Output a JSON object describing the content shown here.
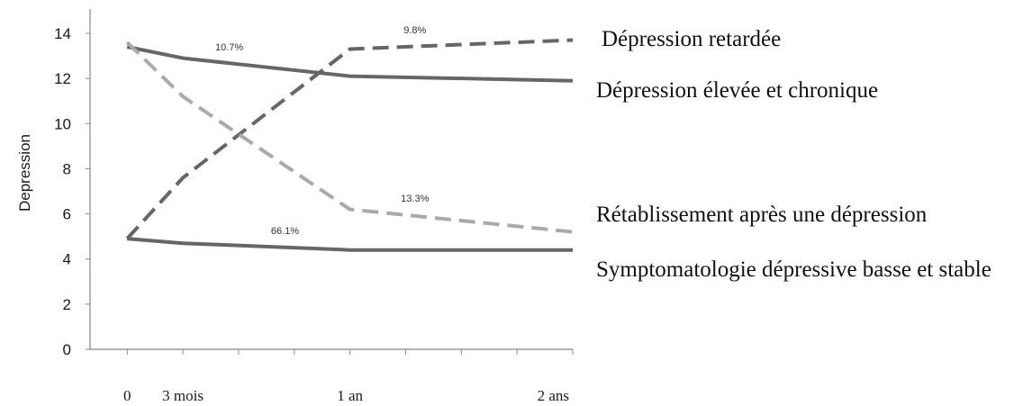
{
  "chart_data": {
    "type": "line",
    "x": [
      0,
      3,
      12,
      24
    ],
    "x_tick_labels": [
      {
        "x": 0,
        "label": "0"
      },
      {
        "x": 3,
        "label": "3 mois"
      },
      {
        "x": 12,
        "label": "1 an"
      },
      {
        "x": 24,
        "label": "2 ans"
      }
    ],
    "xlim": [
      -2,
      24
    ],
    "ylabel": "Depression",
    "ylim": [
      0,
      14
    ],
    "y_ticks": [
      0,
      2,
      4,
      6,
      8,
      10,
      12,
      14
    ],
    "grid": false,
    "series": [
      {
        "name": "Dépression retardée",
        "percent": "9.8%",
        "style": "dashed",
        "color": "#666666",
        "values": [
          4.9,
          7.6,
          13.3,
          13.7
        ]
      },
      {
        "name": "Dépression élevée et chronique",
        "percent": "10.7%",
        "style": "solid",
        "color": "#666666",
        "values": [
          13.4,
          12.9,
          12.1,
          11.9
        ]
      },
      {
        "name": "Rétablissement après une dépression",
        "percent": "13.3%",
        "style": "dashed",
        "color": "#aaaaaa",
        "values": [
          13.6,
          11.2,
          6.2,
          5.2
        ]
      },
      {
        "name": "Symptomatologie dépressive basse et stable",
        "percent": "66.1%",
        "style": "solid",
        "color": "#666666",
        "values": [
          4.9,
          4.7,
          4.4,
          4.4
        ]
      }
    ],
    "legend_placement": "right"
  }
}
